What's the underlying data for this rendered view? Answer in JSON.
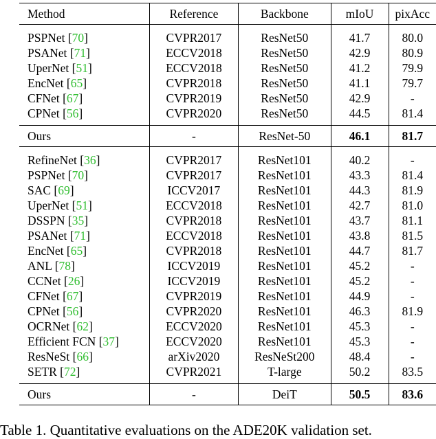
{
  "headers": [
    "Method",
    "Reference",
    "Backbone",
    "mIoU",
    "pixAcc"
  ],
  "group1": [
    {
      "name": "PSPNet",
      "cite": "70",
      "ref": "CVPR2017",
      "backbone": "ResNet50",
      "miou": "41.7",
      "pix": "80.0"
    },
    {
      "name": "PSANet",
      "cite": "71",
      "ref": "ECCV2018",
      "backbone": "ResNet50",
      "miou": "42.9",
      "pix": "80.9"
    },
    {
      "name": "UperNet",
      "cite": "51",
      "ref": "ECCV2018",
      "backbone": "ResNet50",
      "miou": "41.2",
      "pix": "79.9"
    },
    {
      "name": "EncNet",
      "cite": "65",
      "ref": "CVPR2018",
      "backbone": "ResNet50",
      "miou": "41.1",
      "pix": "79.7"
    },
    {
      "name": "CFNet",
      "cite": "67",
      "ref": "CVPR2019",
      "backbone": "ResNet50",
      "miou": "42.9",
      "pix": "-"
    },
    {
      "name": "CPNet",
      "cite": "56",
      "ref": "CVPR2020",
      "backbone": "ResNet50",
      "miou": "44.5",
      "pix": "81.4"
    }
  ],
  "ours1": {
    "name": "Ours",
    "ref": "-",
    "backbone": "ResNet-50",
    "miou": "46.1",
    "pix": "81.7"
  },
  "group2": [
    {
      "name": "RefineNet",
      "cite": "36",
      "ref": "CVPR2017",
      "backbone": "ResNet101",
      "miou": "40.2",
      "pix": "-"
    },
    {
      "name": "PSPNet",
      "cite": "70",
      "ref": "CVPR2017",
      "backbone": "ResNet101",
      "miou": "43.3",
      "pix": "81.4"
    },
    {
      "name": "SAC",
      "cite": "69",
      "ref": "ICCV2017",
      "backbone": "ResNet101",
      "miou": "44.3",
      "pix": "81.9"
    },
    {
      "name": "UperNet",
      "cite": "51",
      "ref": "ECCV2018",
      "backbone": "ResNet101",
      "miou": "42.7",
      "pix": "81.0"
    },
    {
      "name": "DSSPN",
      "cite": "35",
      "ref": "CVPR2018",
      "backbone": "ResNet101",
      "miou": "43.7",
      "pix": "81.1"
    },
    {
      "name": "PSANet",
      "cite": "71",
      "ref": "ECCV2018",
      "backbone": "ResNet101",
      "miou": "43.8",
      "pix": "81.5"
    },
    {
      "name": "EncNet",
      "cite": "65",
      "ref": "CVPR2018",
      "backbone": "ResNet101",
      "miou": "44.7",
      "pix": "81.7"
    },
    {
      "name": "ANL",
      "cite": "78",
      "ref": "ICCV2019",
      "backbone": "ResNet101",
      "miou": "45.2",
      "pix": "-"
    },
    {
      "name": "CCNet",
      "cite": "26",
      "ref": "ICCV2019",
      "backbone": "ResNet101",
      "miou": "45.2",
      "pix": "-"
    },
    {
      "name": "CFNet",
      "cite": "67",
      "ref": "CVPR2019",
      "backbone": "ResNet101",
      "miou": "44.9",
      "pix": "-"
    },
    {
      "name": "CPNet",
      "cite": "56",
      "ref": "CVPR2020",
      "backbone": "ResNet101",
      "miou": "46.3",
      "pix": "81.9"
    },
    {
      "name": "OCRNet",
      "cite": "62",
      "ref": "ECCV2020",
      "backbone": "ResNet101",
      "miou": "45.3",
      "pix": "-"
    },
    {
      "name": "Efficient FCN",
      "cite": "37",
      "ref": "ECCV2020",
      "backbone": "ResNet101",
      "miou": "45.3",
      "pix": "-"
    },
    {
      "name": "ResNeSt",
      "cite": "66",
      "ref": "arXiv2020",
      "backbone": "ResNeSt200",
      "miou": "48.4",
      "pix": "-"
    },
    {
      "name": "SETR",
      "cite": "72",
      "ref": "CVPR2021",
      "backbone": "T-large",
      "miou": "50.2",
      "pix": "83.5"
    }
  ],
  "ours2": {
    "name": "Ours",
    "ref": "-",
    "backbone": "DeiT",
    "miou": "50.5",
    "pix": "83.6"
  },
  "caption": "Table 1. Quantitative evaluations on the ADE20K validation set.",
  "colors": {
    "citation": "#2fbd2f"
  }
}
